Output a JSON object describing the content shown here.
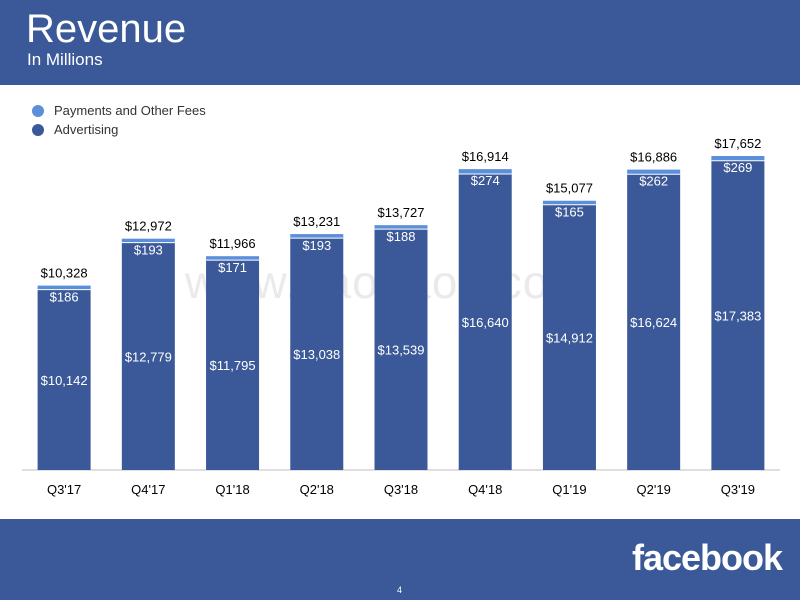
{
  "header": {
    "title": "Revenue",
    "subtitle": "In Millions"
  },
  "legend": {
    "payments_label": "Payments and Other Fees",
    "advertising_label": "Advertising"
  },
  "watermark": "www.baogao8.com",
  "footer": {
    "logo_text": "facebook",
    "page_number": "4"
  },
  "colors": {
    "brand": "#3b5998",
    "advertising": "#3b5998",
    "payments": "#5b8fd9",
    "background": "#ffffff"
  },
  "chart_data": {
    "type": "bar",
    "stacked": true,
    "categories": [
      "Q3'17",
      "Q4'17",
      "Q1'18",
      "Q2'18",
      "Q3'18",
      "Q4'18",
      "Q1'19",
      "Q2'19",
      "Q3'19"
    ],
    "series": [
      {
        "name": "Advertising",
        "values": [
          10142,
          12779,
          11795,
          13038,
          13539,
          16640,
          14912,
          16624,
          17383
        ],
        "labels": [
          "$10,142",
          "$12,779",
          "$11,795",
          "$13,038",
          "$13,539",
          "$16,640",
          "$14,912",
          "$16,624",
          "$17,383"
        ]
      },
      {
        "name": "Payments and Other Fees",
        "values": [
          186,
          193,
          171,
          193,
          188,
          274,
          165,
          262,
          269
        ],
        "labels": [
          "$186",
          "$193",
          "$171",
          "$193",
          "$188",
          "$274",
          "$165",
          "$262",
          "$269"
        ]
      }
    ],
    "totals": [
      10328,
      12972,
      11966,
      13231,
      13727,
      16914,
      15077,
      16886,
      17652
    ],
    "total_labels": [
      "$10,328",
      "$12,972",
      "$11,966",
      "$13,231",
      "$13,727",
      "$16,914",
      "$15,077",
      "$16,886",
      "$17,652"
    ],
    "title": "Revenue",
    "subtitle": "In Millions",
    "ylim": [
      0,
      17652
    ],
    "grid": false,
    "legend_position": "top-left"
  }
}
